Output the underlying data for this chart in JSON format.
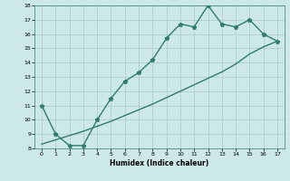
{
  "xlabel": "Humidex (Indice chaleur)",
  "x_data": [
    0,
    1,
    2,
    3,
    4,
    5,
    6,
    7,
    8,
    9,
    10,
    11,
    12,
    13,
    14,
    15,
    16,
    17
  ],
  "y_zigzag": [
    11,
    9,
    8.2,
    8.2,
    10,
    11.5,
    12.7,
    13.3,
    14.2,
    15.7,
    16.7,
    16.5,
    18,
    16.7,
    16.5,
    17,
    16,
    15.5
  ],
  "y_linear": [
    8.3,
    8.6,
    8.9,
    9.2,
    9.55,
    9.9,
    10.3,
    10.7,
    11.1,
    11.55,
    12.0,
    12.45,
    12.9,
    13.35,
    13.9,
    14.6,
    15.1,
    15.5
  ],
  "ylim": [
    8,
    18
  ],
  "xlim": [
    -0.5,
    17.5
  ],
  "yticks": [
    8,
    9,
    10,
    11,
    12,
    13,
    14,
    15,
    16,
    17,
    18
  ],
  "xticks": [
    0,
    1,
    2,
    3,
    4,
    5,
    6,
    7,
    8,
    9,
    10,
    11,
    12,
    13,
    14,
    15,
    16,
    17
  ],
  "line_color": "#2e7d6b",
  "bg_color": "#cce8e8",
  "grid_color": "#adc8c8",
  "marker": "*",
  "marker_size": 3.5,
  "line_width": 1.0
}
